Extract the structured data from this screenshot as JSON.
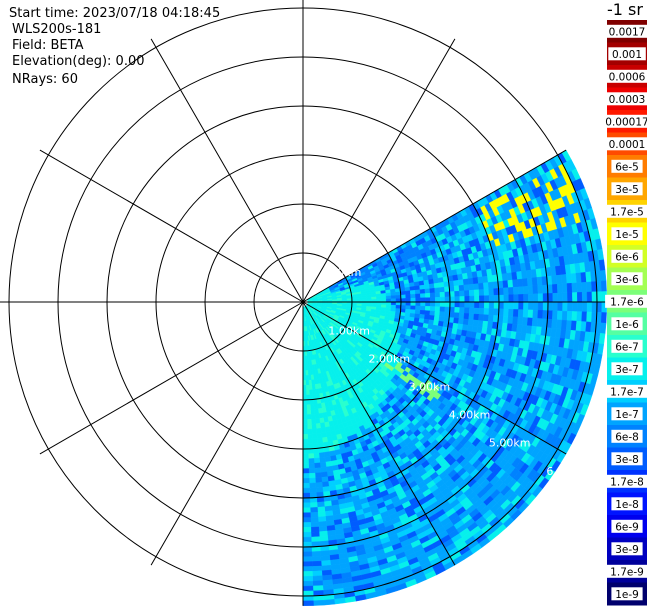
{
  "info": {
    "start_time": "Start time: 2023/07/18 04:18:45",
    "instrument": "WLS200s-181",
    "field": "Field: BETA",
    "elevation": "Elevation(deg): 0.00",
    "nrays": "NRays: 60"
  },
  "colorbar": {
    "units_label": "-1 sr",
    "labels": [
      "0.0017",
      "0.001",
      "0.0006",
      "0.0003",
      "0.00017",
      "0.0001",
      "6e-5",
      "3e-5",
      "1.7e-5",
      "1e-5",
      "6e-6",
      "3e-6",
      "1.7e-6",
      "1e-6",
      "6e-7",
      "3e-7",
      "1.7e-7",
      "1e-7",
      "6e-8",
      "3e-8",
      "1.7e-8",
      "1e-8",
      "6e-9",
      "3e-9",
      "1.7e-9",
      "1e-9"
    ],
    "colors": [
      "#800000",
      "#a30000",
      "#c80000",
      "#ee0000",
      "#ff1a00",
      "#ff4b00",
      "#ff7c00",
      "#ffa600",
      "#ffd300",
      "#ffff00",
      "#d2ff25",
      "#a4ff53",
      "#7cff79",
      "#55ffa2",
      "#29ffce",
      "#06f0ec",
      "#00cfff",
      "#00a4ff",
      "#0082ff",
      "#005cff",
      "#0032ff",
      "#0014ff",
      "#0000ee",
      "#0000c0",
      "#00009a",
      "#00006d"
    ]
  },
  "chart_data": {
    "type": "heatmap",
    "projection": "polar (PPI)",
    "field": "BETA",
    "range_ring_labels": [
      "0.0km",
      "1.00km",
      "2.00km",
      "3.00km",
      "4.00km",
      "5.00km",
      "6"
    ],
    "range_rings_km": [
      1,
      2,
      3,
      4,
      5,
      6
    ],
    "radial_lines_deg": [
      0,
      30,
      60,
      90,
      120,
      150,
      180,
      210,
      240,
      270,
      300,
      330
    ],
    "scan_sector_deg": [
      60,
      180
    ],
    "max_range_km": 6.2,
    "features": [
      {
        "description": "enhanced backscatter band",
        "azimuth_deg_range": [
          63,
          73
        ],
        "range_km": [
          4.0,
          6.0
        ],
        "value": "1e-5"
      },
      {
        "description": "enhanced backscatter patch",
        "azimuth_deg_range": [
          122,
          128
        ],
        "range_km": [
          2.0,
          3.5
        ],
        "value": "1.7e-6"
      }
    ],
    "near_range_value": "3e-7",
    "far_range_value": "1e-7"
  }
}
